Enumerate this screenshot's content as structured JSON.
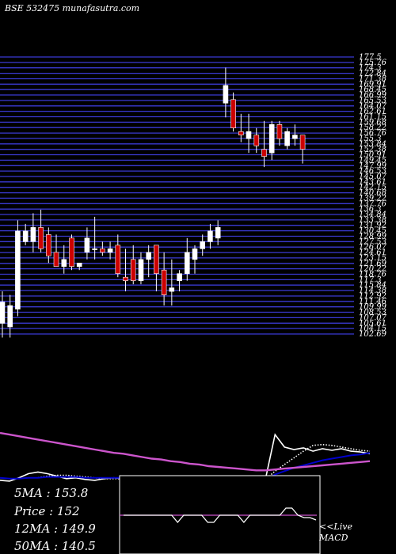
{
  "watermark": "BSE 532475 munafasutra.com",
  "info": {
    "ma5": "5MA : 153.8",
    "price": "Price : 152",
    "ma12": "12MA : 149.9",
    "ma50": "50MA : 140.5"
  },
  "live_macd": {
    "line1": "<<Live",
    "line2": "MACD"
  },
  "chart_data": {
    "type": "candlestick",
    "ylim": [
      101,
      179
    ],
    "price_tick_labels": [
      "177.5",
      "175.76",
      "174.3",
      "172.84",
      "171.38",
      "169.91",
      "168.45",
      "166.99",
      "165.53",
      "164.07",
      "162.61",
      "161.15",
      "159.68",
      "158.22",
      "156.76",
      "155.3",
      "153.84",
      "152.38",
      "150.91",
      "149.45",
      "147.99",
      "146.53",
      "145.07",
      "143.61",
      "142.15",
      "140.68",
      "139.22",
      "137.76",
      "136.3",
      "134.84",
      "133.38",
      "131.92",
      "130.45",
      "128.99",
      "127.53",
      "126.07",
      "124.61",
      "123.15",
      "121.69",
      "120.22",
      "118.76",
      "117.3",
      "115.84",
      "114.38",
      "112.92",
      "111.46",
      "109.99",
      "108.53",
      "107.07",
      "105.61",
      "104.15",
      "102.69"
    ],
    "candles": [
      {
        "o": 104,
        "h": 113,
        "l": 100,
        "c": 110,
        "dir": "up"
      },
      {
        "o": 103,
        "h": 112,
        "l": 100,
        "c": 109,
        "dir": "up"
      },
      {
        "o": 108,
        "h": 133,
        "l": 106,
        "c": 130,
        "dir": "up"
      },
      {
        "o": 127,
        "h": 132,
        "l": 126,
        "c": 130,
        "dir": "up"
      },
      {
        "o": 127,
        "h": 135,
        "l": 124,
        "c": 131,
        "dir": "up"
      },
      {
        "o": 131,
        "h": 136,
        "l": 124,
        "c": 125,
        "dir": "down"
      },
      {
        "o": 129,
        "h": 131,
        "l": 121,
        "c": 123,
        "dir": "down"
      },
      {
        "o": 124,
        "h": 129,
        "l": 120,
        "c": 120,
        "dir": "down"
      },
      {
        "o": 120,
        "h": 126,
        "l": 118,
        "c": 122,
        "dir": "up"
      },
      {
        "o": 128,
        "h": 129,
        "l": 119,
        "c": 120,
        "dir": "down"
      },
      {
        "o": 120,
        "h": 121,
        "l": 119,
        "c": 121,
        "dir": "up"
      },
      {
        "o": 124,
        "h": 131,
        "l": 122,
        "c": 128,
        "dir": "up"
      },
      {
        "o": 125,
        "h": 134,
        "l": 122,
        "c": 125,
        "dir": "up"
      },
      {
        "o": 125,
        "h": 127,
        "l": 123,
        "c": 124,
        "dir": "down"
      },
      {
        "o": 124,
        "h": 127,
        "l": 122,
        "c": 125,
        "dir": "up"
      },
      {
        "o": 126,
        "h": 129,
        "l": 117,
        "c": 118,
        "dir": "down"
      },
      {
        "o": 117,
        "h": 125,
        "l": 113,
        "c": 116,
        "dir": "down"
      },
      {
        "o": 122,
        "h": 126,
        "l": 115,
        "c": 116,
        "dir": "down"
      },
      {
        "o": 116,
        "h": 124,
        "l": 115,
        "c": 122,
        "dir": "up"
      },
      {
        "o": 122,
        "h": 126,
        "l": 117,
        "c": 124,
        "dir": "up"
      },
      {
        "o": 126,
        "h": 126,
        "l": 113,
        "c": 118,
        "dir": "down"
      },
      {
        "o": 119,
        "h": 124,
        "l": 109,
        "c": 112,
        "dir": "down"
      },
      {
        "o": 113,
        "h": 122,
        "l": 109,
        "c": 114,
        "dir": "up"
      },
      {
        "o": 116,
        "h": 119,
        "l": 113,
        "c": 118,
        "dir": "up"
      },
      {
        "o": 118,
        "h": 128,
        "l": 116,
        "c": 124,
        "dir": "up"
      },
      {
        "o": 122,
        "h": 126,
        "l": 118,
        "c": 125,
        "dir": "up"
      },
      {
        "o": 125,
        "h": 129,
        "l": 123,
        "c": 127,
        "dir": "up"
      },
      {
        "o": 127,
        "h": 132,
        "l": 125,
        "c": 130,
        "dir": "up"
      },
      {
        "o": 128,
        "h": 133,
        "l": 126,
        "c": 131,
        "dir": "up"
      },
      {
        "o": 166,
        "h": 176,
        "l": 162,
        "c": 171,
        "dir": "up"
      },
      {
        "o": 167,
        "h": 169,
        "l": 158,
        "c": 159,
        "dir": "down"
      },
      {
        "o": 158,
        "h": 163,
        "l": 155,
        "c": 157,
        "dir": "down"
      },
      {
        "o": 156,
        "h": 163,
        "l": 152,
        "c": 158,
        "dir": "up"
      },
      {
        "o": 157,
        "h": 159,
        "l": 152,
        "c": 154,
        "dir": "down"
      },
      {
        "o": 153,
        "h": 161,
        "l": 148,
        "c": 151,
        "dir": "down"
      },
      {
        "o": 152,
        "h": 161,
        "l": 150,
        "c": 160,
        "dir": "up"
      },
      {
        "o": 160,
        "h": 161,
        "l": 154,
        "c": 156,
        "dir": "down"
      },
      {
        "o": 154,
        "h": 159,
        "l": 153,
        "c": 158,
        "dir": "up"
      },
      {
        "o": 156,
        "h": 160,
        "l": 154,
        "c": 157,
        "dir": "up"
      },
      {
        "o": 157,
        "h": 157,
        "l": 149,
        "c": 153,
        "dir": "down"
      }
    ],
    "indicator_lines": [
      {
        "role": "price",
        "color": "#ffffff",
        "values": [
          3,
          2,
          6,
          11,
          13,
          11,
          8,
          5,
          6,
          4,
          3,
          5,
          6,
          5,
          6,
          3,
          2,
          2,
          3,
          3,
          4,
          3,
          3,
          3,
          4,
          4,
          4,
          5,
          5,
          58,
          43,
          40,
          42,
          38,
          41,
          39,
          41,
          38,
          37,
          35
        ]
      },
      {
        "role": "short-ma",
        "color": "#ffffff",
        "dotted": true,
        "values": [
          null,
          null,
          null,
          null,
          6,
          8,
          9,
          9,
          8,
          7,
          6,
          5,
          5,
          5,
          5,
          5,
          5,
          4,
          4,
          3,
          3,
          3,
          3,
          3,
          3,
          3,
          3,
          4,
          4,
          14,
          22,
          30,
          38,
          45,
          46,
          45,
          43,
          41,
          39,
          38
        ]
      },
      {
        "role": "mid-ma",
        "color": "#0000cc",
        "values": [
          6,
          5,
          5,
          6,
          6,
          7,
          7,
          7,
          7,
          6,
          6,
          6,
          6,
          6,
          5,
          5,
          4,
          4,
          4,
          4,
          4,
          3,
          3,
          3,
          3,
          3,
          3,
          3,
          3,
          10,
          14,
          18,
          21,
          24,
          27,
          29,
          31,
          33,
          34,
          36
        ]
      },
      {
        "role": "long-ma",
        "color": "#cc55cc",
        "values": [
          60,
          58,
          56,
          54,
          52,
          50,
          48,
          46,
          44,
          42,
          40,
          38,
          36,
          35,
          33,
          31,
          29,
          28,
          26,
          25,
          23,
          22,
          20,
          19,
          18,
          17,
          16,
          15,
          15,
          16,
          17,
          18,
          19,
          20,
          21,
          22,
          23,
          24,
          25,
          26
        ]
      }
    ],
    "macd": {
      "values": [
        0,
        0,
        0,
        0,
        0,
        0,
        0,
        0,
        0,
        -1.5,
        0,
        0,
        0,
        0,
        -1.5,
        -1.5,
        0,
        0,
        0,
        0,
        -1.5,
        0,
        0,
        0,
        0,
        0,
        0,
        1.5,
        1.5,
        0,
        -0.5,
        -0.5,
        -1
      ],
      "signal": 0
    }
  }
}
